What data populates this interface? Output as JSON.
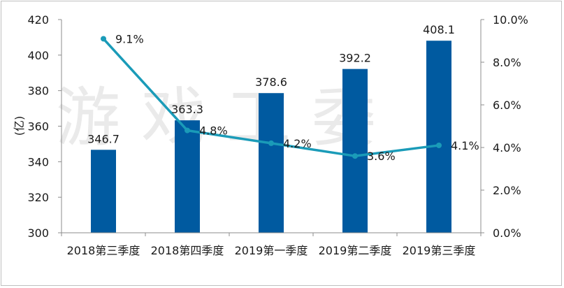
{
  "watermark": "游戏工委",
  "chart_data": {
    "type": "bar",
    "categories": [
      "2018第三季度",
      "2018第四季度",
      "2019第一季度",
      "2019第二季度",
      "2019第三季度"
    ],
    "bars": {
      "values": [
        346.7,
        363.3,
        378.6,
        392.2,
        408.1
      ],
      "labels": [
        "346.7",
        "363.3",
        "378.6",
        "392.2",
        "408.1"
      ],
      "color": "#005aa0"
    },
    "line": {
      "values": [
        9.1,
        4.8,
        4.2,
        3.6,
        4.1
      ],
      "labels": [
        "9.1%",
        "4.8%",
        "4.2%",
        "3.6%",
        "4.1%"
      ],
      "color": "#1a9bb8"
    },
    "ylabel": "(亿)",
    "ylim": [
      300,
      420
    ],
    "y_ticks": [
      "300",
      "320",
      "340",
      "360",
      "380",
      "400",
      "420"
    ],
    "y2lim": [
      0,
      10
    ],
    "y2_ticks": [
      "0.0%",
      "2.0%",
      "4.0%",
      "6.0%",
      "8.0%",
      "10.0%"
    ],
    "grid": false,
    "legend": "none"
  }
}
